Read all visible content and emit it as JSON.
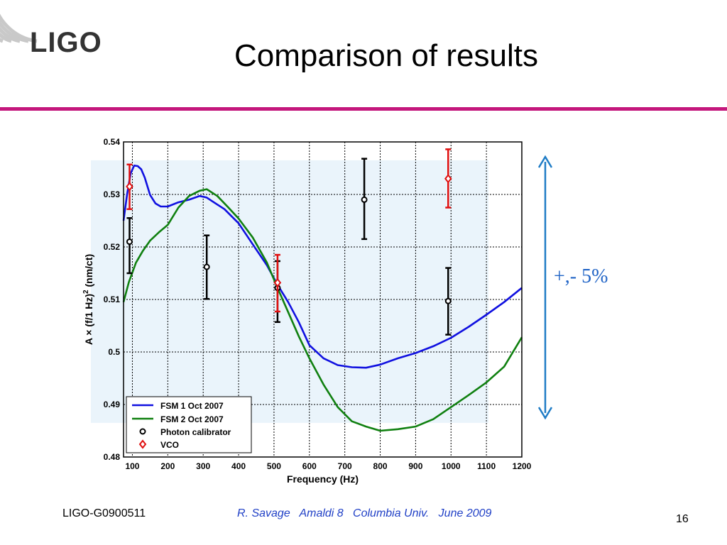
{
  "slide": {
    "title": "Comparison of results",
    "logo_text": "LIGO",
    "side_label": "+,- 5%",
    "footer_left": "LIGO-G0900511",
    "footer_center": "R. Savage   Amaldi 8   Columbia Univ.   June 2009",
    "page_number": "16"
  },
  "colors": {
    "accent_rule": "#c4177c",
    "fsm1": "#1010e0",
    "fsm2": "#108010",
    "photon": "#000000",
    "vco": "#e01010",
    "band": "#eaf4fb",
    "arrow": "#1f7cc6"
  },
  "chart_data": {
    "type": "line",
    "xlabel": "Frequency (Hz)",
    "ylabel": "A × (f/1 Hz)",
    "ylabel_superscript": "2",
    "ylabel_suffix": " (nm/ct)",
    "xlim": [
      75,
      1200
    ],
    "ylim": [
      0.48,
      0.54
    ],
    "xticks": [
      100,
      200,
      300,
      400,
      500,
      600,
      700,
      800,
      900,
      1000,
      1100,
      1200
    ],
    "yticks": [
      0.48,
      0.49,
      0.5,
      0.51,
      0.52,
      0.53,
      0.54
    ],
    "ytick_labels": [
      "0.48",
      "0.49",
      "0.5",
      "0.51",
      "0.52",
      "0.53",
      "0.54"
    ],
    "grid": true,
    "band": [
      0.4865,
      0.5365
    ],
    "legend_position": "bottom-left",
    "lines": [
      {
        "name": "FSM 1 Oct 2007",
        "color": "#1010e0",
        "x": [
          75,
          85,
          95,
          105,
          115,
          125,
          135,
          150,
          165,
          180,
          200,
          230,
          260,
          290,
          310,
          330,
          360,
          400,
          440,
          480,
          510,
          540,
          570,
          600,
          640,
          680,
          720,
          760,
          800,
          850,
          900,
          950,
          1000,
          1050,
          1100,
          1150,
          1200
        ],
        "y": [
          0.525,
          0.53,
          0.534,
          0.5355,
          0.5354,
          0.5348,
          0.5332,
          0.5299,
          0.5283,
          0.5277,
          0.5277,
          0.5285,
          0.529,
          0.5297,
          0.5294,
          0.5285,
          0.5272,
          0.5245,
          0.5205,
          0.5165,
          0.5128,
          0.5095,
          0.5057,
          0.5013,
          0.4988,
          0.4975,
          0.4971,
          0.497,
          0.4976,
          0.4988,
          0.4998,
          0.5011,
          0.5027,
          0.5048,
          0.5071,
          0.5095,
          0.5122
        ]
      },
      {
        "name": "FSM 2 Oct 2007",
        "color": "#108010",
        "x": [
          75,
          90,
          110,
          130,
          150,
          175,
          200,
          230,
          260,
          290,
          310,
          340,
          370,
          400,
          440,
          480,
          510,
          540,
          570,
          600,
          640,
          680,
          720,
          760,
          800,
          850,
          900,
          950,
          1000,
          1050,
          1100,
          1150,
          1200
        ],
        "y": [
          0.5095,
          0.5133,
          0.517,
          0.5193,
          0.5212,
          0.5228,
          0.5242,
          0.5275,
          0.5297,
          0.5307,
          0.531,
          0.5297,
          0.5276,
          0.5254,
          0.5218,
          0.517,
          0.5122,
          0.5076,
          0.503,
          0.4988,
          0.4938,
          0.4895,
          0.4868,
          0.4858,
          0.485,
          0.4853,
          0.4858,
          0.4872,
          0.4895,
          0.4918,
          0.4942,
          0.4972,
          0.5028
        ]
      }
    ],
    "markers": [
      {
        "name": "Photon calibrator",
        "color": "#000000",
        "symbol": "circle",
        "points": [
          {
            "x": 92,
            "y": 0.521,
            "low": 0.515,
            "high": 0.5255
          },
          {
            "x": 310,
            "y": 0.5162,
            "low": 0.5101,
            "high": 0.5222
          },
          {
            "x": 510,
            "y": 0.5122,
            "low": 0.5057,
            "high": 0.5173
          },
          {
            "x": 755,
            "y": 0.529,
            "low": 0.5215,
            "high": 0.5368
          },
          {
            "x": 992,
            "y": 0.5097,
            "low": 0.5033,
            "high": 0.516
          }
        ]
      },
      {
        "name": "VCO",
        "color": "#e01010",
        "symbol": "diamond",
        "points": [
          {
            "x": 92,
            "y": 0.5315,
            "low": 0.5272,
            "high": 0.5357
          },
          {
            "x": 510,
            "y": 0.5132,
            "low": 0.5077,
            "high": 0.5185
          },
          {
            "x": 992,
            "y": 0.533,
            "low": 0.5275,
            "high": 0.5386
          }
        ]
      }
    ]
  }
}
